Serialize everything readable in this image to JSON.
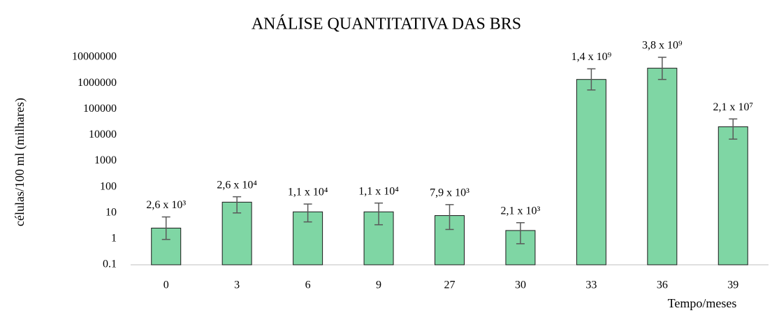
{
  "chart_data": {
    "type": "bar",
    "title": "ANÁLISE QUANTITATIVA DAS BRS",
    "ylabel": "células/100 ml (milhares)",
    "xlabel": "Tempo/meses",
    "categories": [
      "0",
      "3",
      "6",
      "9",
      "27",
      "30",
      "33",
      "36",
      "39"
    ],
    "values": [
      2.6,
      26,
      11,
      11,
      7.9,
      2.1,
      1400000,
      3800000,
      21000
    ],
    "value_labels": [
      "2,6 x 10³",
      "2,6 x 10⁴",
      "1,1 x 10⁴",
      "1,1 x 10⁴",
      "7,9 x 10³",
      "2,1 x 10³",
      "1,4 x 10⁹",
      "3,8 x 10⁹",
      "2,1 x 10⁷"
    ],
    "error_plus": [
      4.4,
      16,
      11,
      13,
      13,
      2.1,
      2200000,
      6200000,
      21000
    ],
    "error_minus": [
      1.65,
      16,
      6.5,
      7.5,
      5.6,
      1.45,
      850000,
      2400000,
      14000
    ],
    "color": "#7fd6a4",
    "log_scale": true,
    "ylim": [
      0.1,
      10000000
    ],
    "yticks": [
      0.1,
      1,
      10,
      100,
      1000,
      10000,
      100000,
      1000000,
      10000000
    ]
  }
}
